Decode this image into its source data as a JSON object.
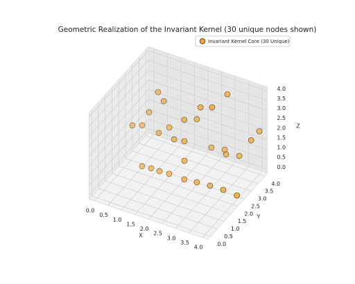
{
  "chart_data": {
    "type": "scatter3d",
    "title": "Geometric Realization of the Invariant Kernel (30 unique nodes shown)",
    "xlabel": "X",
    "ylabel": "Y",
    "zlabel": "Z",
    "xlim": [
      -0.2,
      4.2
    ],
    "ylim": [
      -0.2,
      4.2
    ],
    "zlim": [
      -0.2,
      4.2
    ],
    "xticks": [
      {
        "value": 0,
        "label": "0.0"
      },
      0.5,
      {
        "value": 1,
        "label": "1.0"
      },
      1.5,
      {
        "value": 2,
        "label": "2.0"
      },
      2.5,
      {
        "value": 3,
        "label": "3.0"
      },
      3.5,
      {
        "value": 4,
        "label": "4.0"
      }
    ],
    "yticks": [
      {
        "value": 0,
        "label": "0.0"
      },
      0.5,
      {
        "value": 1,
        "label": "1.0"
      },
      1.5,
      {
        "value": 2,
        "label": "2.0"
      },
      2.5,
      {
        "value": 3,
        "label": "3.0"
      },
      3.5,
      {
        "value": 4,
        "label": "4.0"
      }
    ],
    "zticks": [
      {
        "value": 0,
        "label": "0.0"
      },
      0.5,
      {
        "value": 1,
        "label": "1.0"
      },
      1.5,
      {
        "value": 2,
        "label": "2.0"
      },
      2.5,
      {
        "value": 3,
        "label": "3.0"
      },
      3.5,
      {
        "value": 4,
        "label": "4.0"
      }
    ],
    "legend": "upper right",
    "grid": true,
    "series": [
      {
        "name": "Invariant Kernel Core (30 Unique)",
        "color": "#f5a623",
        "x": [
          1.13,
          1.52,
          0.89,
          3.15,
          3.05,
          2.72,
          0.25,
          0.53,
          2.08,
          2.42,
          1.35,
          1.19,
          1.79,
          2.13,
          4.0,
          4.0,
          2.56,
          2.99,
          3.15,
          3.56,
          2.13,
          0.57,
          0.88,
          1.19,
          1.53,
          2.1,
          2.53,
          2.99,
          3.47,
          4.0
        ],
        "y": [
          2.25,
          1.89,
          2.07,
          3.34,
          2.41,
          2.21,
          2.11,
          2.28,
          2.29,
          2.54,
          2.64,
          2.18,
          2.12,
          2.2,
          4.0,
          3.4,
          3.34,
          3.46,
          3.24,
          3.4,
          2.2,
          2.19,
          2.24,
          2.24,
          2.27,
          2.25,
          2.32,
          2.37,
          2.39,
          2.34
        ],
        "z": [
          4,
          4,
          3,
          4,
          4,
          4,
          2,
          2,
          3,
          3,
          2,
          2,
          2,
          2,
          2,
          2,
          1,
          1,
          1,
          1,
          1,
          0,
          0,
          0,
          0,
          0,
          0,
          0,
          0,
          0
        ]
      }
    ]
  }
}
